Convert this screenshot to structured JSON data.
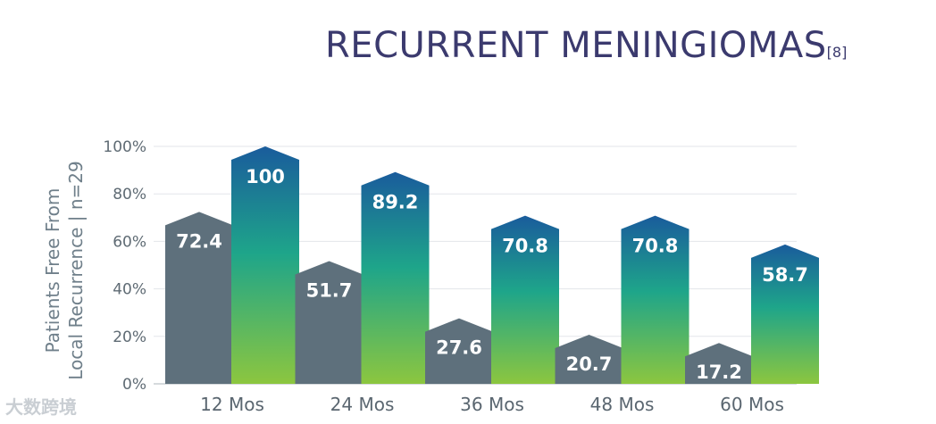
{
  "title": "RECURRENT MENINGIOMAS",
  "title_ref": "[8]",
  "watermark": "大数跨境",
  "chart_data": {
    "type": "bar",
    "ylabel_lines": [
      "Patients Free From",
      "Local Recurrence  |  n=29"
    ],
    "categories": [
      "12 Mos",
      "24 Mos",
      "36 Mos",
      "48 Mos",
      "60 Mos"
    ],
    "ylim": [
      0,
      100
    ],
    "yticks": [
      "0%",
      "20%",
      "40%",
      "60%",
      "80%",
      "100%"
    ],
    "series": [
      {
        "values": [
          72.4,
          51.7,
          27.6,
          20.7,
          17.2
        ],
        "color": "#5e707c"
      },
      {
        "values": [
          100,
          89.2,
          70.8,
          70.8,
          58.7
        ],
        "colors": {
          "top": "#1a5c9c",
          "mid": "#1ea58a",
          "bottom": "#8cc63f"
        }
      }
    ],
    "grid": true
  }
}
